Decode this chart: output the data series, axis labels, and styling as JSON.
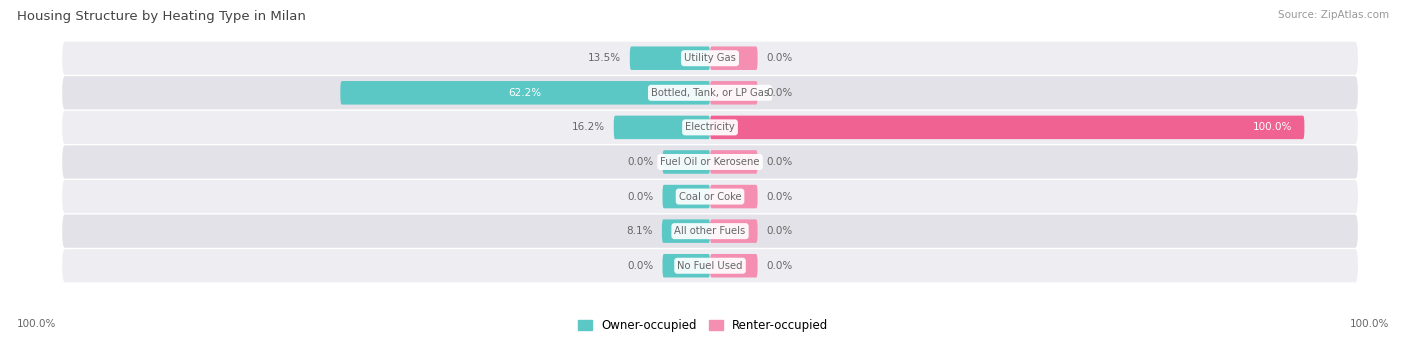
{
  "title": "Housing Structure by Heating Type in Milan",
  "source": "Source: ZipAtlas.com",
  "categories": [
    "Utility Gas",
    "Bottled, Tank, or LP Gas",
    "Electricity",
    "Fuel Oil or Kerosene",
    "Coal or Coke",
    "All other Fuels",
    "No Fuel Used"
  ],
  "owner_values": [
    13.5,
    62.2,
    16.2,
    0.0,
    0.0,
    8.1,
    0.0
  ],
  "renter_values": [
    0.0,
    0.0,
    100.0,
    0.0,
    0.0,
    0.0,
    0.0
  ],
  "owner_color": "#5BC8C5",
  "renter_color": "#F48FB1",
  "renter_color_full": "#F06292",
  "row_bg_light": "#EEEEF2",
  "row_bg_dark": "#E2E2E8",
  "text_color": "#666666",
  "title_color": "#444444",
  "source_color": "#999999",
  "stub_size": 8.0,
  "max_value": 100.0
}
